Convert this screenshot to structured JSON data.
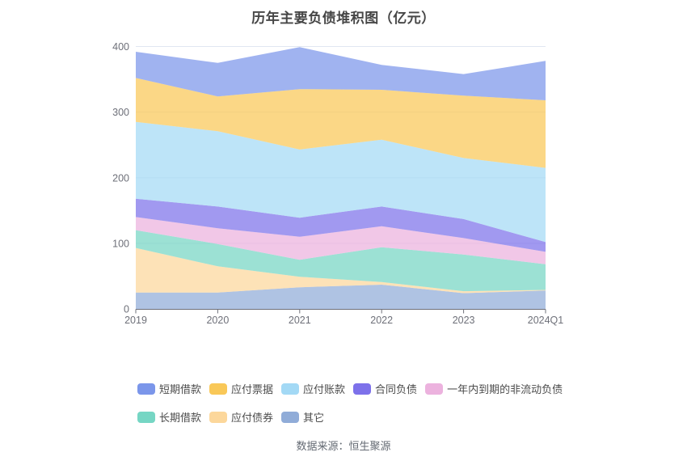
{
  "title": "历年主要负债堆积图（亿元）",
  "footer": "数据来源：恒生聚源",
  "colors": {
    "grid_line": "#e0e6f1",
    "axis_line": "#6e7079",
    "axis_label": "#6e7079"
  },
  "chart_data": {
    "type": "area",
    "stacked": true,
    "title": "历年主要负债堆积图（亿元）",
    "categories": [
      "2019",
      "2020",
      "2021",
      "2022",
      "2023",
      "2024Q1"
    ],
    "series": [
      {
        "name": "短期借款",
        "color": "#7b96ea",
        "values": [
          40,
          51,
          64,
          38,
          33,
          60
        ]
      },
      {
        "name": "应付票据",
        "color": "#f9c858",
        "values": [
          67,
          53,
          92,
          76,
          95,
          103
        ]
      },
      {
        "name": "应付账款",
        "color": "#a3d9f5",
        "values": [
          117,
          115,
          104,
          102,
          93,
          113
        ]
      },
      {
        "name": "合同负债",
        "color": "#7d71ea",
        "values": [
          28,
          33,
          29,
          30,
          29,
          15
        ]
      },
      {
        "name": "一年内到期的非流动负债",
        "color": "#ecb2de",
        "values": [
          20,
          24,
          35,
          32,
          25,
          19
        ]
      },
      {
        "name": "长期借款",
        "color": "#76d6c4",
        "values": [
          27,
          34,
          26,
          53,
          56,
          39
        ]
      },
      {
        "name": "应付债券",
        "color": "#fcd79b",
        "values": [
          68,
          40,
          16,
          4,
          3,
          1
        ]
      },
      {
        "name": "其它",
        "color": "#90acd8",
        "values": [
          25,
          25,
          33,
          37,
          24,
          28
        ]
      }
    ],
    "stack_order": "bottom-to-top is reverse of series list",
    "ylim": [
      0,
      400
    ],
    "yticks": [
      0,
      100,
      200,
      300,
      400
    ],
    "xlabel": "",
    "ylabel": "",
    "grid": true,
    "legend_position": "bottom-left",
    "legend_row_sizes": [
      5,
      3
    ],
    "area_opacity": 0.72
  }
}
